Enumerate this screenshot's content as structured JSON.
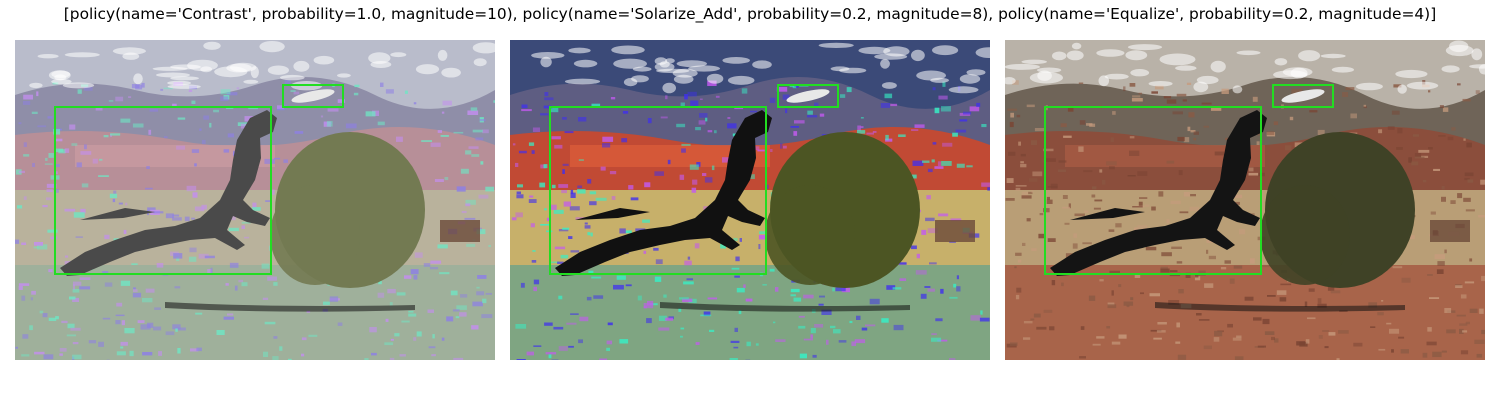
{
  "figure": {
    "title": "[policy(name='Contrast', probability=1.0, magnitude=10), policy(name='Solarize_Add', probability=0.2, magnitude=8), policy(name='Equalize', probability=0.2, magnitude=4)]"
  },
  "panels": [
    {
      "variant": "contrast",
      "box_color": "#22dd22",
      "colors": {
        "sky": "#b9bccb",
        "ridge": "#8f8ea8",
        "cliff": "#b78f98",
        "band": "#c89aa0",
        "grass": "#b9b29c",
        "ground": "#9fb09b",
        "speckle1": "#8d7fe6",
        "speckle2": "#6fe6c4",
        "speckle3": "#c48ef0",
        "tree": "#737a52",
        "dog": "#4a4a4a"
      }
    },
    {
      "variant": "solarize_add",
      "box_color": "#22dd22",
      "colors": {
        "sky": "#3b4a78",
        "ridge": "#5e5d82",
        "cliff": "#c14a34",
        "band": "#d85b3a",
        "grass": "#c7b06a",
        "ground": "#7fa582",
        "speckle1": "#3f2ff0",
        "speckle2": "#36f0c6",
        "speckle3": "#c35af0",
        "tree": "#4c5523",
        "dog": "#111111"
      }
    },
    {
      "variant": "equalize",
      "box_color": "#22dd22",
      "colors": {
        "sky": "#b9b2a8",
        "ridge": "#6f6458",
        "cliff": "#8b4e3c",
        "band": "#a45a43",
        "grass": "#b99e76",
        "ground": "#a8644a",
        "speckle1": "#8a5a44",
        "speckle2": "#c79b7d",
        "speckle3": "#7a4433",
        "tree": "#3f4226",
        "dog": "#141414"
      }
    }
  ]
}
